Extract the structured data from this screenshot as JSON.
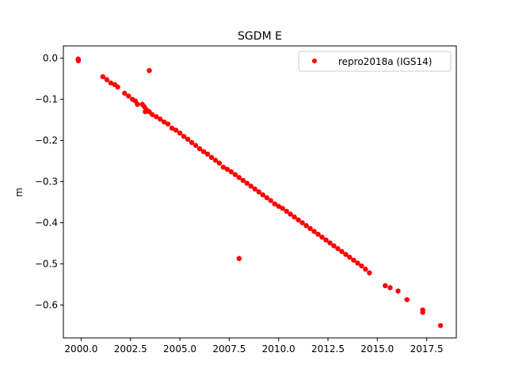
{
  "chart_data": {
    "type": "scatter",
    "title": "SGDM E",
    "xlabel": "",
    "ylabel": "m",
    "xlim": [
      1999.1,
      2019.0
    ],
    "ylim": [
      -0.68,
      0.03
    ],
    "xticks": [
      2000.0,
      2002.5,
      2005.0,
      2007.5,
      2010.0,
      2012.5,
      2015.0,
      2017.5
    ],
    "xtick_labels": [
      "2000.0",
      "2002.5",
      "2005.0",
      "2007.5",
      "2010.0",
      "2012.5",
      "2015.0",
      "2017.5"
    ],
    "yticks": [
      0.0,
      -0.1,
      -0.2,
      -0.3,
      -0.4,
      -0.5,
      -0.6
    ],
    "ytick_labels": [
      "0.0",
      "−0.1",
      "−0.2",
      "−0.3",
      "−0.4",
      "−0.5",
      "−0.6"
    ],
    "legend_placement": "top-right",
    "grid": false,
    "series": [
      {
        "name": "repro2018a (IGS14)",
        "color": "#ff0000",
        "marker": "dot",
        "points": [
          [
            1999.85,
            -0.002
          ],
          [
            1999.86,
            -0.006
          ],
          [
            2001.1,
            -0.045
          ],
          [
            2001.3,
            -0.052
          ],
          [
            2001.5,
            -0.06
          ],
          [
            2001.7,
            -0.064
          ],
          [
            2001.85,
            -0.07
          ],
          [
            2002.2,
            -0.085
          ],
          [
            2002.4,
            -0.092
          ],
          [
            2002.6,
            -0.1
          ],
          [
            2002.75,
            -0.104
          ],
          [
            2002.85,
            -0.112
          ],
          [
            2003.1,
            -0.112
          ],
          [
            2003.2,
            -0.118
          ],
          [
            2003.25,
            -0.13
          ],
          [
            2003.3,
            -0.125
          ],
          [
            2003.45,
            -0.13
          ],
          [
            2003.6,
            -0.137
          ],
          [
            2003.8,
            -0.142
          ],
          [
            2004.0,
            -0.148
          ],
          [
            2004.2,
            -0.155
          ],
          [
            2004.4,
            -0.16
          ],
          [
            2004.6,
            -0.17
          ],
          [
            2004.8,
            -0.175
          ],
          [
            2005.0,
            -0.182
          ],
          [
            2005.2,
            -0.19
          ],
          [
            2005.4,
            -0.197
          ],
          [
            2005.6,
            -0.205
          ],
          [
            2005.8,
            -0.212
          ],
          [
            2006.0,
            -0.22
          ],
          [
            2006.2,
            -0.227
          ],
          [
            2006.4,
            -0.233
          ],
          [
            2006.6,
            -0.241
          ],
          [
            2006.8,
            -0.248
          ],
          [
            2007.0,
            -0.255
          ],
          [
            2007.2,
            -0.265
          ],
          [
            2007.4,
            -0.27
          ],
          [
            2007.6,
            -0.276
          ],
          [
            2007.8,
            -0.283
          ],
          [
            2008.0,
            -0.29
          ],
          [
            2008.2,
            -0.297
          ],
          [
            2008.4,
            -0.304
          ],
          [
            2008.6,
            -0.311
          ],
          [
            2008.8,
            -0.318
          ],
          [
            2009.0,
            -0.325
          ],
          [
            2009.2,
            -0.332
          ],
          [
            2009.4,
            -0.339
          ],
          [
            2009.6,
            -0.346
          ],
          [
            2009.8,
            -0.354
          ],
          [
            2010.0,
            -0.36
          ],
          [
            2010.2,
            -0.365
          ],
          [
            2010.4,
            -0.372
          ],
          [
            2010.6,
            -0.379
          ],
          [
            2010.8,
            -0.386
          ],
          [
            2011.0,
            -0.393
          ],
          [
            2011.2,
            -0.4
          ],
          [
            2011.4,
            -0.407
          ],
          [
            2011.6,
            -0.414
          ],
          [
            2011.8,
            -0.421
          ],
          [
            2012.0,
            -0.428
          ],
          [
            2012.2,
            -0.435
          ],
          [
            2012.4,
            -0.442
          ],
          [
            2012.6,
            -0.449
          ],
          [
            2012.8,
            -0.456
          ],
          [
            2013.0,
            -0.463
          ],
          [
            2013.2,
            -0.47
          ],
          [
            2013.4,
            -0.477
          ],
          [
            2013.6,
            -0.484
          ],
          [
            2013.8,
            -0.491
          ],
          [
            2014.0,
            -0.498
          ],
          [
            2014.2,
            -0.505
          ],
          [
            2014.4,
            -0.513
          ],
          [
            2014.6,
            -0.522
          ],
          [
            2003.45,
            -0.03
          ],
          [
            2008.0,
            -0.487
          ],
          [
            2015.4,
            -0.553
          ],
          [
            2015.65,
            -0.558
          ],
          [
            2016.05,
            -0.566
          ],
          [
            2016.5,
            -0.587
          ],
          [
            2017.3,
            -0.612
          ],
          [
            2017.3,
            -0.618
          ],
          [
            2018.2,
            -0.65
          ]
        ]
      }
    ]
  }
}
